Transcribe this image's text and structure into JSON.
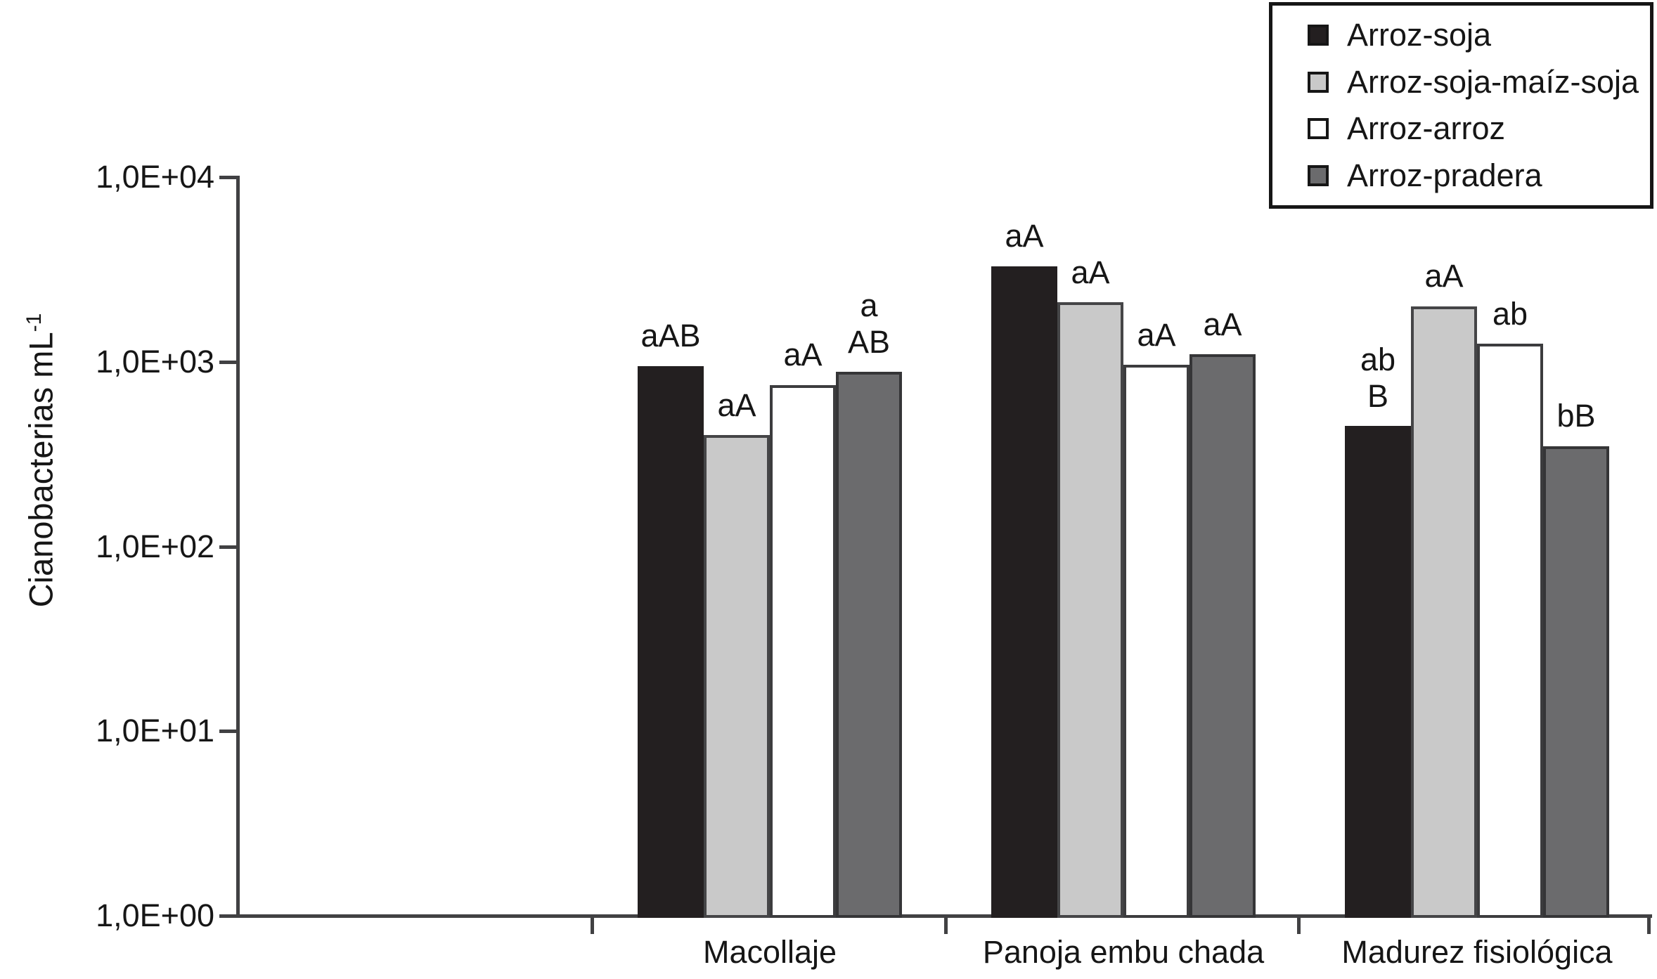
{
  "chart_data": {
    "type": "bar",
    "title": "",
    "ylabel": "Cianobacterias mL-1",
    "ylabel_base": "Cianobacterias mL",
    "ylabel_sup": "-1",
    "xlabel": "",
    "yscale": "log",
    "ylim": [
      1,
      10000
    ],
    "y_tick_labels": [
      "1,0E+00",
      "1,0E+01",
      "1,0E+02",
      "1,0E+03",
      "1,0E+04"
    ],
    "grid": false,
    "legend_position": "top-right",
    "categories": [
      "Macollaje",
      "Panoja embu chada",
      "Madurez fisiológica"
    ],
    "series": [
      {
        "name": "Arroz-soja",
        "color": "#231f20",
        "border": "#231f20",
        "values": [
          950,
          3300,
          450
        ]
      },
      {
        "name": "Arroz-soja-maíz-soja",
        "color": "#c9c9c9",
        "border": "#454547",
        "values": [
          400,
          2100,
          2000
        ]
      },
      {
        "name": "Arroz-arroz",
        "color": "#ffffff",
        "border": "#3c3c3e",
        "values": [
          750,
          960,
          1250
        ]
      },
      {
        "name": "Arroz-pradera",
        "color": "#6b6b6d",
        "border": "#353537",
        "values": [
          880,
          1100,
          350
        ]
      }
    ],
    "annotations": [
      [
        "aAB",
        "aA",
        "aA",
        "a\nAB"
      ],
      [
        "aA",
        "aA",
        "aA",
        "aA"
      ],
      [
        "ab\nB",
        "aA",
        "ab",
        "bB"
      ]
    ]
  }
}
